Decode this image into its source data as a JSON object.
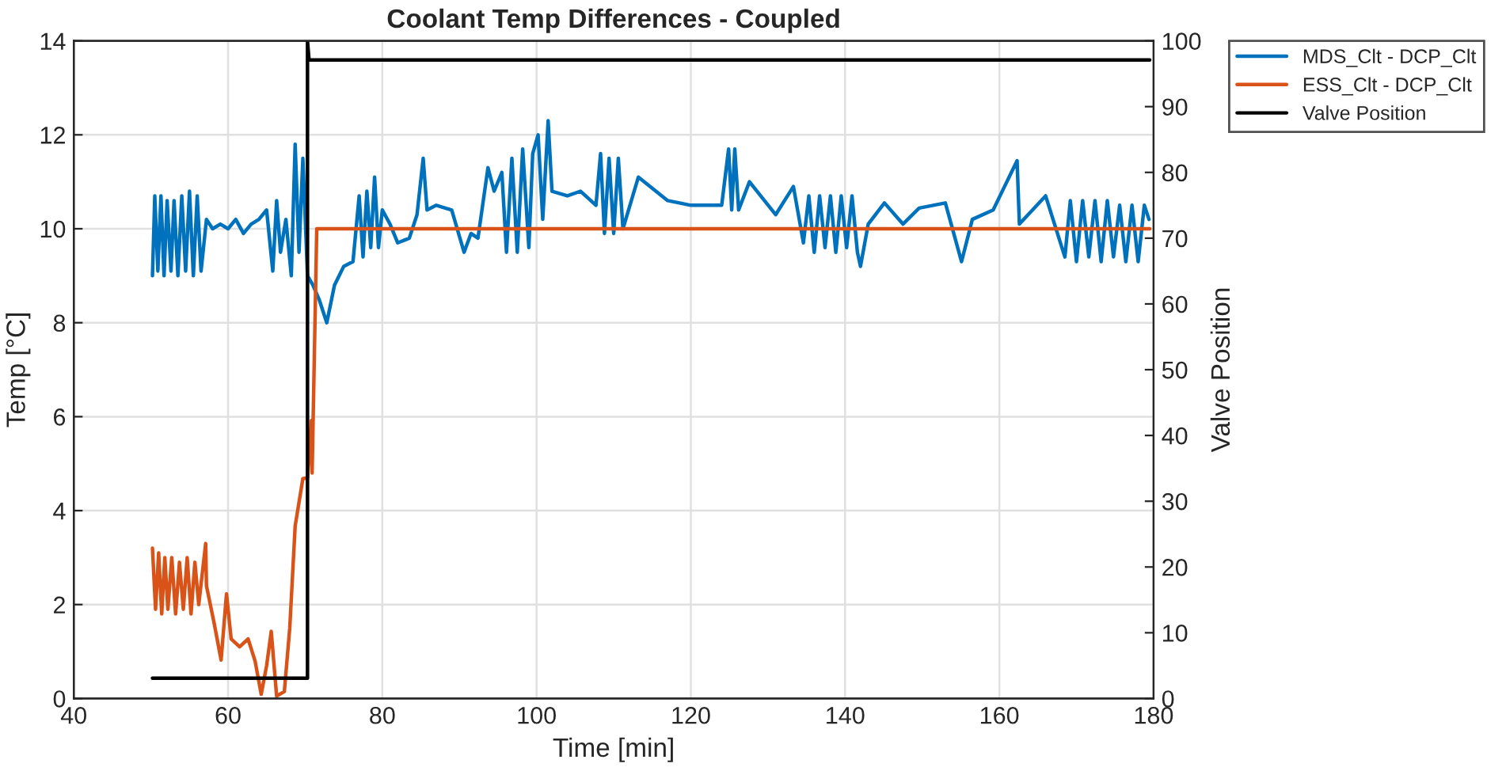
{
  "chart_data": {
    "type": "line",
    "title": "Coolant Temp Differences - Coupled",
    "xlabel": "Time [min]",
    "ylabel": "Temp [°C]",
    "y2label": "Valve Position",
    "xlim": [
      40,
      180
    ],
    "xticks": [
      40,
      60,
      80,
      100,
      120,
      140,
      160,
      180
    ],
    "ylim": [
      0,
      14
    ],
    "yticks": [
      0,
      2,
      4,
      6,
      8,
      10,
      12,
      14
    ],
    "y2lim": [
      0,
      100
    ],
    "y2ticks": [
      0,
      10,
      20,
      30,
      40,
      50,
      60,
      70,
      80,
      90,
      100
    ],
    "grid": true,
    "legend": "top right",
    "line_style": "solid",
    "marker": "none",
    "series": [
      {
        "name": "MDS_Clt - DCP_Clt",
        "color": "#0072bd",
        "x": [
          50.2,
          50.5,
          50.9,
          51.3,
          51.7,
          52.1,
          52.6,
          53.0,
          53.5,
          54.0,
          54.5,
          55.0,
          55.5,
          56.0,
          56.5,
          57.2,
          58.0,
          59.0,
          60.0,
          61.0,
          62.0,
          63.0,
          64.0,
          65.0,
          65.8,
          66.3,
          66.8,
          67.5,
          68.2,
          68.7,
          69.2,
          69.7,
          70.3,
          71.0,
          71.8,
          72.8,
          73.8,
          75.0,
          76.2,
          77.0,
          77.5,
          78.0,
          78.5,
          79.0,
          79.5,
          80.0,
          81.0,
          82.0,
          83.5,
          84.5,
          85.3,
          85.8,
          87.0,
          89.0,
          90.6,
          91.5,
          92.4,
          93.7,
          94.5,
          95.5,
          96.1,
          96.8,
          97.5,
          98.2,
          99.0,
          99.5,
          100.2,
          100.8,
          101.5,
          102.0,
          104.0,
          105.7,
          107.7,
          108.3,
          108.8,
          109.4,
          110.0,
          110.6,
          111.2,
          113.2,
          117.0,
          120.0,
          124.0,
          124.9,
          125.3,
          125.7,
          126.2,
          127.6,
          131.0,
          133.3,
          134.6,
          135.3,
          136.0,
          136.7,
          137.4,
          138.1,
          138.8,
          139.5,
          140.2,
          140.9,
          141.6,
          142.0,
          143.0,
          145.1,
          147.5,
          149.6,
          153.0,
          155.1,
          156.5,
          159.2,
          162.3,
          162.6,
          166.0,
          168.5,
          169.2,
          170.0,
          170.8,
          171.6,
          172.4,
          173.2,
          174.0,
          174.8,
          175.6,
          176.4,
          177.2,
          178.0,
          178.8,
          179.4
        ],
        "values": [
          9.0,
          10.7,
          9.1,
          10.7,
          9.0,
          10.6,
          9.1,
          10.6,
          9.0,
          10.7,
          9.1,
          10.8,
          9.0,
          10.7,
          9.1,
          10.2,
          10.0,
          10.1,
          10.0,
          10.2,
          9.9,
          10.1,
          10.2,
          10.4,
          9.1,
          10.6,
          9.5,
          10.2,
          9.0,
          11.8,
          9.5,
          11.5,
          9.0,
          8.8,
          8.5,
          8.0,
          8.8,
          9.2,
          9.3,
          10.7,
          9.4,
          10.8,
          9.6,
          11.1,
          9.6,
          10.4,
          10.1,
          9.7,
          9.8,
          10.3,
          11.5,
          10.4,
          10.5,
          10.4,
          9.5,
          9.9,
          9.8,
          11.3,
          10.8,
          11.2,
          9.5,
          11.5,
          9.5,
          11.7,
          9.6,
          11.6,
          12.0,
          10.2,
          12.3,
          10.8,
          10.7,
          10.8,
          10.5,
          11.6,
          9.9,
          11.5,
          9.9,
          11.5,
          10.0,
          11.1,
          10.6,
          10.5,
          10.5,
          11.7,
          10.4,
          11.7,
          10.4,
          11.0,
          10.3,
          10.9,
          9.7,
          10.7,
          9.5,
          10.7,
          9.6,
          10.7,
          9.5,
          10.7,
          9.6,
          10.7,
          9.5,
          9.2,
          10.1,
          10.55,
          10.1,
          10.44,
          10.55,
          9.3,
          10.2,
          10.4,
          11.45,
          10.1,
          10.7,
          9.4,
          10.6,
          9.3,
          10.6,
          9.4,
          10.6,
          9.3,
          10.6,
          9.4,
          10.5,
          9.3,
          10.5,
          9.3,
          10.5,
          10.2
        ]
      },
      {
        "name": "ESS_Clt - DCP_Clt",
        "color": "#d95319",
        "x": [
          50.2,
          50.6,
          51.0,
          51.4,
          51.8,
          52.2,
          52.7,
          53.2,
          53.7,
          54.2,
          54.7,
          55.2,
          55.7,
          56.2,
          57.1,
          57.2,
          58.2,
          59.1,
          59.8,
          60.4,
          61.5,
          62.6,
          63.5,
          64.3,
          65.0,
          65.6,
          66.3,
          67.3,
          68.0,
          68.7,
          69.7,
          70.3,
          70.8,
          70.9,
          71.5,
          179.5
        ],
        "values": [
          3.2,
          1.9,
          3.1,
          1.8,
          3.0,
          1.9,
          3.0,
          1.8,
          2.9,
          1.9,
          3.0,
          1.8,
          2.9,
          2.0,
          3.3,
          2.4,
          1.6,
          0.82,
          2.23,
          1.27,
          1.1,
          1.27,
          0.8,
          0.09,
          0.7,
          1.43,
          0.05,
          0.15,
          1.5,
          3.67,
          4.68,
          4.7,
          5.92,
          4.8,
          10.0,
          10.0
        ]
      },
      {
        "name": "Valve Position",
        "color": "#000000",
        "axis": "y2",
        "x": [
          50.2,
          70.3,
          70.3,
          70.5,
          179.5
        ],
        "values": [
          3.1,
          3.1,
          100,
          97.1,
          97.1
        ]
      }
    ]
  }
}
